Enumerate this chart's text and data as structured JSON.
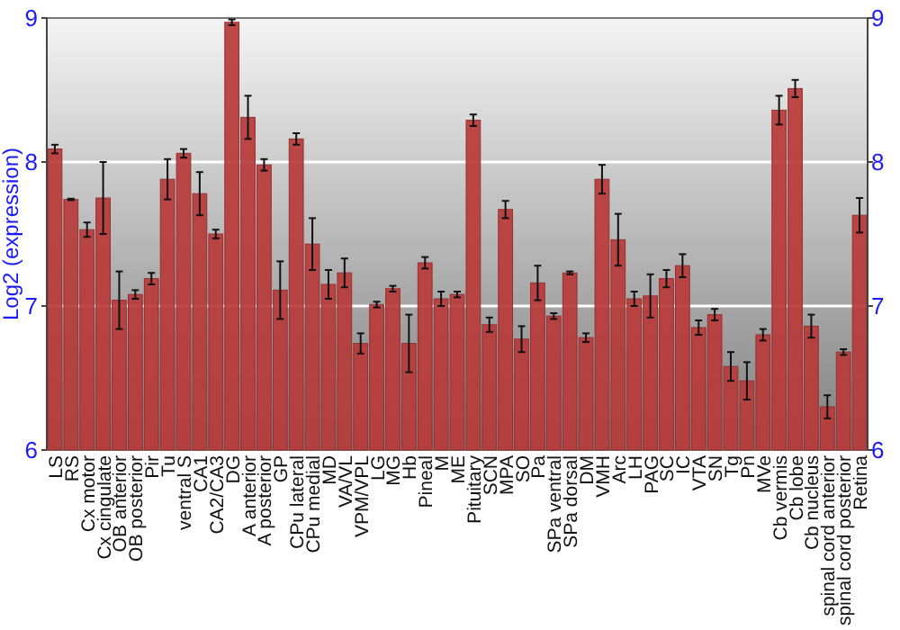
{
  "chart_data": {
    "type": "bar",
    "ylabel": "Log2 (expression)",
    "categories": [
      "LS",
      "RS",
      "Cx motor",
      "Cx cingulate",
      "OB anterior",
      "OB posterior",
      "Pir",
      "Tu",
      "ventral S",
      "CA1",
      "CA2/CA3",
      "DG",
      "A anterior",
      "A posterior",
      "GP",
      "CPu lateral",
      "CPu medial",
      "MD",
      "VA/VL",
      "VPM/VPL",
      "LG",
      "MG",
      "Hb",
      "Pineal",
      "M",
      "ME",
      "Pituitary",
      "SCN",
      "MPA",
      "SO",
      "Pa",
      "SPa ventral",
      "SPa dorsal",
      "DM",
      "VMH",
      "Arc",
      "LH",
      "PAG",
      "SC",
      "IC",
      "VTA",
      "SN",
      "Tg",
      "Pn",
      "MVe",
      "Cb vermis",
      "Cb lobe",
      "Cb nucleus",
      "spinal cord anterior",
      "spinal cord posterior",
      "Retina"
    ],
    "values": [
      8.09,
      7.74,
      7.53,
      7.75,
      7.04,
      7.08,
      7.19,
      7.88,
      8.06,
      7.78,
      7.5,
      8.97,
      8.31,
      7.98,
      7.11,
      8.16,
      7.43,
      7.15,
      7.23,
      6.74,
      7.01,
      7.12,
      6.74,
      7.3,
      7.05,
      7.08,
      8.29,
      6.87,
      7.67,
      6.77,
      7.16,
      6.93,
      7.23,
      6.78,
      7.88,
      7.46,
      7.05,
      7.07,
      7.19,
      7.28,
      6.85,
      6.94,
      6.58,
      6.48,
      6.8,
      8.36,
      8.51,
      6.86,
      6.3,
      6.68,
      7.63
    ],
    "errors": [
      0.03,
      0.005,
      0.05,
      0.25,
      0.2,
      0.03,
      0.04,
      0.14,
      0.03,
      0.15,
      0.03,
      0.02,
      0.15,
      0.04,
      0.2,
      0.04,
      0.18,
      0.1,
      0.1,
      0.07,
      0.02,
      0.02,
      0.2,
      0.04,
      0.05,
      0.02,
      0.04,
      0.05,
      0.06,
      0.09,
      0.12,
      0.02,
      0.01,
      0.03,
      0.1,
      0.18,
      0.05,
      0.15,
      0.06,
      0.08,
      0.05,
      0.04,
      0.1,
      0.13,
      0.04,
      0.1,
      0.06,
      0.08,
      0.08,
      0.02,
      0.12
    ],
    "color": "#b83a3a",
    "ylim": [
      6,
      9
    ],
    "yticks": [
      6,
      7,
      8,
      9
    ],
    "y2lim": [
      6,
      9
    ],
    "y2ticks": [
      6,
      7,
      8,
      9
    ],
    "grid": "y"
  }
}
